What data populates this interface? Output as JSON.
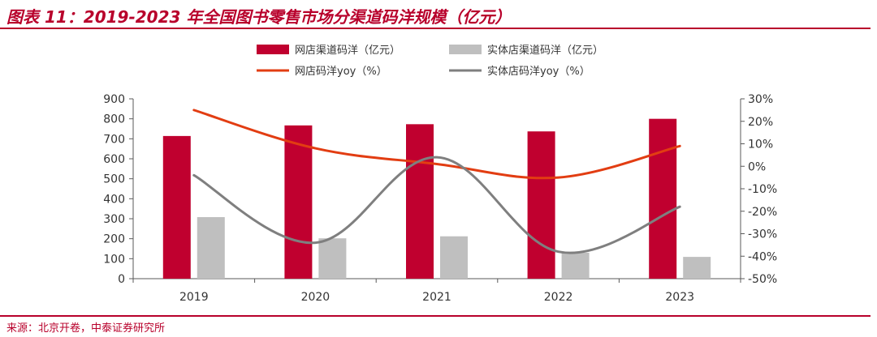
{
  "header": {
    "title": "图表 11：2019-2023 年全国图书零售市场分渠道码洋规模（亿元）"
  },
  "footer": {
    "source": "来源：北京开卷，中泰证券研究所"
  },
  "colors": {
    "accent": "#b8002b",
    "online_bar": "#c0002f",
    "offline_bar": "#bfbfbf",
    "online_line": "#e23d12",
    "offline_line": "#7f7f7f"
  },
  "chart_data": {
    "type": "bar+line",
    "categories": [
      "2019",
      "2020",
      "2021",
      "2022",
      "2023"
    ],
    "bar_series": [
      {
        "name": "网店渠道码洋（亿元）",
        "values": [
          714,
          767,
          773,
          737,
          800
        ]
      },
      {
        "name": "实体店渠道码洋（亿元）",
        "values": [
          308,
          202,
          212,
          130,
          109
        ]
      }
    ],
    "line_series": [
      {
        "name": "网店码洋yoy（%）",
        "values": [
          25,
          8,
          1,
          -5,
          9
        ]
      },
      {
        "name": "实体店码洋yoy（%）",
        "values": [
          -4,
          -34,
          4,
          -38,
          -18
        ]
      }
    ],
    "y_left": {
      "min": 0,
      "max": 900,
      "step": 100,
      "ticks": [
        "0",
        "100",
        "200",
        "300",
        "400",
        "500",
        "600",
        "700",
        "800",
        "900"
      ]
    },
    "y_right": {
      "min": -50,
      "max": 30,
      "step": 10,
      "ticks": [
        "-50%",
        "-40%",
        "-30%",
        "-20%",
        "-10%",
        "0%",
        "10%",
        "20%",
        "30%"
      ]
    },
    "legend_position": "top"
  }
}
